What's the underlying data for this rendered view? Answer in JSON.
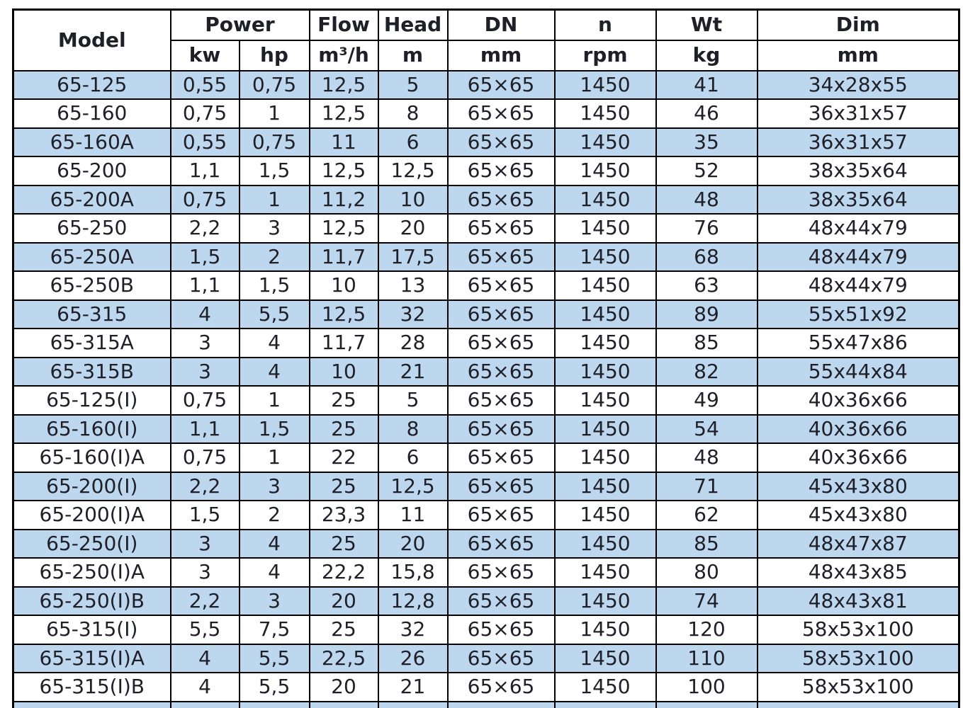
{
  "colors": {
    "row_alt_bg": "#bdd7ee",
    "row_bg": "#ffffff",
    "border": "#000000",
    "text": "#1f1f28"
  },
  "table": {
    "header": {
      "model": "Model",
      "power": "Power",
      "kw": "kw",
      "hp": "hp",
      "flow": "Flow",
      "flow_unit": "m³/h",
      "head": "Head",
      "head_unit": "m",
      "dn": "DN",
      "dn_unit": "mm",
      "n": "n",
      "n_unit": "rpm",
      "wt": "Wt",
      "wt_unit": "kg",
      "dim": "Dim",
      "dim_unit": "mm"
    },
    "rows": [
      {
        "model": "65-125",
        "kw": "0,55",
        "hp": "0,75",
        "flow": "12,5",
        "head": "5",
        "dn": "65×65",
        "n": "1450",
        "wt": "41",
        "dim": "34x28x55"
      },
      {
        "model": "65-160",
        "kw": "0,75",
        "hp": "1",
        "flow": "12,5",
        "head": "8",
        "dn": "65×65",
        "n": "1450",
        "wt": "46",
        "dim": "36x31x57"
      },
      {
        "model": "65-160A",
        "kw": "0,55",
        "hp": "0,75",
        "flow": "11",
        "head": "6",
        "dn": "65×65",
        "n": "1450",
        "wt": "35",
        "dim": "36x31x57"
      },
      {
        "model": "65-200",
        "kw": "1,1",
        "hp": "1,5",
        "flow": "12,5",
        "head": "12,5",
        "dn": "65×65",
        "n": "1450",
        "wt": "52",
        "dim": "38x35x64"
      },
      {
        "model": "65-200A",
        "kw": "0,75",
        "hp": "1",
        "flow": "11,2",
        "head": "10",
        "dn": "65×65",
        "n": "1450",
        "wt": "48",
        "dim": "38x35x64"
      },
      {
        "model": "65-250",
        "kw": "2,2",
        "hp": "3",
        "flow": "12,5",
        "head": "20",
        "dn": "65×65",
        "n": "1450",
        "wt": "76",
        "dim": "48x44x79"
      },
      {
        "model": "65-250A",
        "kw": "1,5",
        "hp": "2",
        "flow": "11,7",
        "head": "17,5",
        "dn": "65×65",
        "n": "1450",
        "wt": "68",
        "dim": "48x44x79"
      },
      {
        "model": "65-250B",
        "kw": "1,1",
        "hp": "1,5",
        "flow": "10",
        "head": "13",
        "dn": "65×65",
        "n": "1450",
        "wt": "63",
        "dim": "48x44x79"
      },
      {
        "model": "65-315",
        "kw": "4",
        "hp": "5,5",
        "flow": "12,5",
        "head": "32",
        "dn": "65×65",
        "n": "1450",
        "wt": "89",
        "dim": "55x51x92"
      },
      {
        "model": "65-315A",
        "kw": "3",
        "hp": "4",
        "flow": "11,7",
        "head": "28",
        "dn": "65×65",
        "n": "1450",
        "wt": "85",
        "dim": "55x47x86"
      },
      {
        "model": "65-315B",
        "kw": "3",
        "hp": "4",
        "flow": "10",
        "head": "21",
        "dn": "65×65",
        "n": "1450",
        "wt": "82",
        "dim": "55x44x84"
      },
      {
        "model": "65-125(I)",
        "kw": "0,75",
        "hp": "1",
        "flow": "25",
        "head": "5",
        "dn": "65×65",
        "n": "1450",
        "wt": "49",
        "dim": "40x36x66"
      },
      {
        "model": "65-160(I)",
        "kw": "1,1",
        "hp": "1,5",
        "flow": "25",
        "head": "8",
        "dn": "65×65",
        "n": "1450",
        "wt": "54",
        "dim": "40x36x66"
      },
      {
        "model": "65-160(I)A",
        "kw": "0,75",
        "hp": "1",
        "flow": "22",
        "head": "6",
        "dn": "65×65",
        "n": "1450",
        "wt": "48",
        "dim": "40x36x66"
      },
      {
        "model": "65-200(I)",
        "kw": "2,2",
        "hp": "3",
        "flow": "25",
        "head": "12,5",
        "dn": "65×65",
        "n": "1450",
        "wt": "71",
        "dim": "45x43x80"
      },
      {
        "model": "65-200(I)A",
        "kw": "1,5",
        "hp": "2",
        "flow": "23,3",
        "head": "11",
        "dn": "65×65",
        "n": "1450",
        "wt": "62",
        "dim": "45x43x80"
      },
      {
        "model": "65-250(I)",
        "kw": "3",
        "hp": "4",
        "flow": "25",
        "head": "20",
        "dn": "65×65",
        "n": "1450",
        "wt": "85",
        "dim": "48x47x87"
      },
      {
        "model": "65-250(I)A",
        "kw": "3",
        "hp": "4",
        "flow": "22,2",
        "head": "15,8",
        "dn": "65×65",
        "n": "1450",
        "wt": "80",
        "dim": "48x43x85"
      },
      {
        "model": "65-250(I)B",
        "kw": "2,2",
        "hp": "3",
        "flow": "20",
        "head": "12,8",
        "dn": "65×65",
        "n": "1450",
        "wt": "74",
        "dim": "48x43x81"
      },
      {
        "model": "65-315(I)",
        "kw": "5,5",
        "hp": "7,5",
        "flow": "25",
        "head": "32",
        "dn": "65×65",
        "n": "1450",
        "wt": "120",
        "dim": "58x53x100"
      },
      {
        "model": "65-315(I)A",
        "kw": "4",
        "hp": "5,5",
        "flow": "22,5",
        "head": "26",
        "dn": "65×65",
        "n": "1450",
        "wt": "110",
        "dim": "58x53x100"
      },
      {
        "model": "65-315(I)B",
        "kw": "4",
        "hp": "5,5",
        "flow": "20",
        "head": "21",
        "dn": "65×65",
        "n": "1450",
        "wt": "100",
        "dim": "58x53x100"
      }
    ]
  }
}
